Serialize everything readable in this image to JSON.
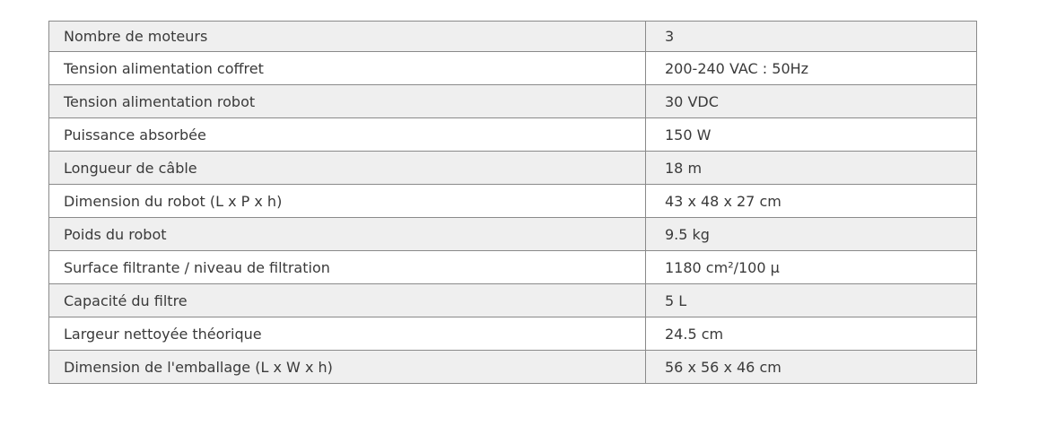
{
  "specs": [
    {
      "label": "Nombre de moteurs",
      "value": "3"
    },
    {
      "label": "Tension alimentation coffret",
      "value": "200-240 VAC : 50Hz"
    },
    {
      "label": "Tension alimentation robot",
      "value": "30 VDC"
    },
    {
      "label": "Puissance absorbée",
      "value": "150 W"
    },
    {
      "label": "Longueur de câble",
      "value": "18 m"
    },
    {
      "label": "Dimension du robot (L x P x h)",
      "value": "43 x 48 x 27 cm"
    },
    {
      "label": "Poids du robot",
      "value": "9.5 kg"
    },
    {
      "label": "Surface filtrante / niveau de filtration",
      "value": "1180 cm²/100 µ"
    },
    {
      "label": "Capacité du filtre",
      "value": "5 L"
    },
    {
      "label": "Largeur nettoyée théorique",
      "value": "24.5 cm"
    },
    {
      "label": "Dimension de l'emballage (L x W x h)",
      "value": "56 x 56 x 46 cm"
    }
  ]
}
